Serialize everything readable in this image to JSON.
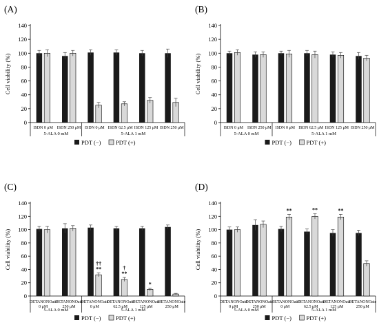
{
  "figure": {
    "legend": {
      "neg_label": "PDT (−)",
      "pos_label": "PDT (+)"
    },
    "colors": {
      "neg": "#1a1a1a",
      "pos": "#d9d9d9",
      "axis": "#000000"
    }
  },
  "chart_data": [
    {
      "panel_label": "(A)",
      "type": "bar",
      "ylabel": "Cell viability (%)",
      "ylim": [
        0,
        140
      ],
      "yticks": [
        0,
        20,
        40,
        60,
        80,
        100,
        120,
        140
      ],
      "legend_position": "bottom",
      "categories": [
        [
          "ISDN 0 μM"
        ],
        [
          "ISDN 250 μM"
        ],
        [
          "ISDN 0 μM"
        ],
        [
          "ISDN 62.5 μM"
        ],
        [
          "ISDN 125 μM"
        ],
        [
          "ISDN 250 μM"
        ]
      ],
      "groups": [
        {
          "label": "5-ALA 0 mM",
          "categories": 2
        },
        {
          "label": "5-ALA 1 mM",
          "categories": 4
        }
      ],
      "series": [
        {
          "name": "PDT (−)",
          "values": [
            100,
            96,
            101,
            101,
            100,
            100
          ],
          "errors": [
            4,
            5,
            4,
            4,
            4,
            6
          ]
        },
        {
          "name": "PDT (+)",
          "values": [
            100,
            100,
            25,
            27,
            32,
            29
          ],
          "errors": [
            5,
            4,
            4,
            3,
            4,
            6
          ]
        }
      ],
      "annotations": []
    },
    {
      "panel_label": "(B)",
      "type": "bar",
      "ylabel": "Cell viability (%)",
      "ylim": [
        0,
        140
      ],
      "yticks": [
        0,
        20,
        40,
        60,
        80,
        100,
        120,
        140
      ],
      "legend_position": "bottom",
      "categories": [
        [
          "ISDN 0 μM"
        ],
        [
          "ISDN 250 μM"
        ],
        [
          "ISDN 0 μM"
        ],
        [
          "ISDN 62.5 μM"
        ],
        [
          "ISDN 125 μM"
        ],
        [
          "ISDN 250 μM"
        ]
      ],
      "groups": [
        {
          "label": "5-ALA 0 mM",
          "categories": 2
        },
        {
          "label": "5-ALA 1 mM",
          "categories": 4
        }
      ],
      "series": [
        {
          "name": "PDT (−)",
          "values": [
            100,
            98,
            100,
            100,
            98,
            96
          ],
          "errors": [
            3,
            4,
            3,
            4,
            4,
            5
          ]
        },
        {
          "name": "PDT (+)",
          "values": [
            101,
            98,
            99,
            98,
            97,
            93
          ],
          "errors": [
            4,
            4,
            5,
            5,
            4,
            4
          ]
        }
      ],
      "annotations": []
    },
    {
      "panel_label": "(C)",
      "type": "bar",
      "ylabel": "Cell viability (%)",
      "ylim": [
        0,
        140
      ],
      "yticks": [
        0,
        20,
        40,
        60,
        80,
        100,
        120,
        140
      ],
      "legend_position": "bottom",
      "categories": [
        [
          "DETANONOate",
          "0 μM"
        ],
        [
          "DETANONOate",
          "250 μM"
        ],
        [
          "DETANONOate",
          "0 μM"
        ],
        [
          "DETANONOate",
          "62.5 μM"
        ],
        [
          "DETANONOate",
          "125 μM"
        ],
        [
          "DETANONOate",
          "250 μM"
        ]
      ],
      "groups": [
        {
          "label": "5-ALA 0 mM",
          "categories": 2
        },
        {
          "label": "5-ALA 1 mM",
          "categories": 4
        }
      ],
      "series": [
        {
          "name": "PDT (−)",
          "values": [
            101,
            102,
            103,
            102,
            102,
            104
          ],
          "errors": [
            4,
            7,
            4,
            3,
            3,
            3
          ]
        },
        {
          "name": "PDT (+)",
          "values": [
            100,
            102,
            32,
            25,
            10,
            3
          ],
          "errors": [
            5,
            4,
            3,
            3,
            2,
            1
          ]
        }
      ],
      "annotations": [
        {
          "category": 2,
          "series": 1,
          "lines": [
            "††",
            "**"
          ]
        },
        {
          "category": 3,
          "series": 1,
          "lines": [
            "†",
            "**"
          ]
        },
        {
          "category": 4,
          "series": 1,
          "lines": [
            "*"
          ]
        }
      ]
    },
    {
      "panel_label": "(D)",
      "type": "bar",
      "ylabel": "Cell viability (%)",
      "ylim": [
        0,
        140
      ],
      "yticks": [
        0,
        20,
        40,
        60,
        80,
        100,
        120,
        140
      ],
      "legend_position": "bottom",
      "categories": [
        [
          "DETANONOate",
          "0 μM"
        ],
        [
          "DETANONOate",
          "250 μM"
        ],
        [
          "DETANONOate",
          "0 μM"
        ],
        [
          "DETANONOate",
          "62.5 μM"
        ],
        [
          "DETANONOate",
          "125 μM"
        ],
        [
          "DETANONOate",
          "250 μM"
        ]
      ],
      "groups": [
        {
          "label": "5-ALA 0 mM",
          "categories": 2
        },
        {
          "label": "5-ALA 1 mM",
          "categories": 4
        }
      ],
      "series": [
        {
          "name": "PDT (−)",
          "values": [
            100,
            107,
            101,
            97,
            95,
            95
          ],
          "errors": [
            4,
            8,
            4,
            4,
            5,
            4
          ]
        },
        {
          "name": "PDT (+)",
          "values": [
            100,
            108,
            119,
            120,
            119,
            49
          ],
          "errors": [
            4,
            5,
            4,
            4,
            4,
            4
          ]
        }
      ],
      "annotations": [
        {
          "category": 2,
          "series": 1,
          "lines": [
            "**"
          ]
        },
        {
          "category": 3,
          "series": 1,
          "lines": [
            "**"
          ]
        },
        {
          "category": 4,
          "series": 1,
          "lines": [
            "**"
          ]
        }
      ]
    }
  ]
}
